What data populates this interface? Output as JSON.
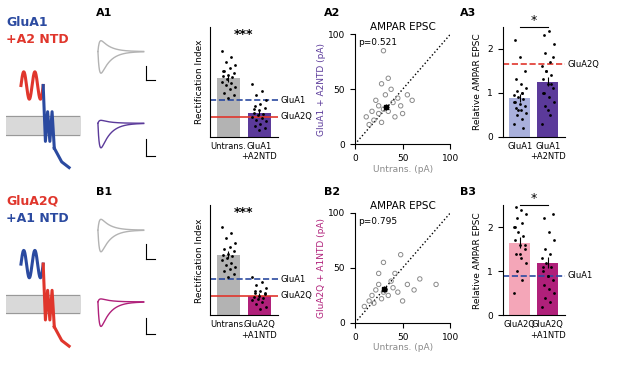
{
  "rows": [
    {
      "title": [
        "GluA1",
        "+A2 NTD"
      ],
      "title_colors": [
        "#2b4aa0",
        "#e0362c"
      ]
    },
    {
      "title": [
        "GluA2Q",
        "+A1 NTD"
      ],
      "title_colors": [
        "#e0362c",
        "#2b4aa0"
      ]
    }
  ],
  "chart_data": [
    {
      "panel": "A1",
      "type": "bar",
      "ylabel": "Rectification Index",
      "categories": [
        "Untrans.",
        "GluA1\n+A2NTD"
      ],
      "values": [
        0.53,
        0.22
      ],
      "errors": [
        0.03,
        0.025
      ],
      "colors": [
        "#b3b3b3",
        "#5b3a9a"
      ],
      "points": [
        [
          0.78,
          0.72,
          0.68,
          0.65,
          0.62,
          0.6,
          0.58,
          0.56,
          0.55,
          0.54,
          0.52,
          0.5,
          0.49,
          0.47,
          0.45,
          0.43,
          0.4,
          0.38,
          0.35,
          0.6
        ],
        [
          0.48,
          0.42,
          0.38,
          0.33,
          0.3,
          0.28,
          0.26,
          0.24,
          0.22,
          0.21,
          0.2,
          0.18,
          0.17,
          0.15,
          0.14,
          0.12,
          0.1,
          0.08,
          0.06,
          0.25
        ]
      ],
      "ylim": [
        0,
        1
      ],
      "tick_labels": "x",
      "reference_lines": [
        {
          "name": "GluA1",
          "value": 0.33,
          "color": "#2b4aa0",
          "line_style": "dashed"
        },
        {
          "name": "GluA2Q",
          "value": 0.18,
          "color": "#e0362c",
          "line_style": "solid"
        }
      ],
      "annotation": "***"
    },
    {
      "panel": "A2",
      "type": "scatter",
      "title": "AMPAR EPSC",
      "annotation": "p=0.521",
      "xlabel": "Untrans. (pA)",
      "ylabel": "GluA1 + A2NTD (pA)",
      "color": "#5b3a9a",
      "x": [
        12,
        15,
        18,
        20,
        22,
        25,
        25,
        28,
        30,
        30,
        32,
        35,
        38,
        40,
        42,
        45,
        48,
        50,
        55,
        60,
        28,
        35
      ],
      "y": [
        25,
        18,
        30,
        22,
        40,
        35,
        28,
        55,
        32,
        85,
        45,
        30,
        50,
        38,
        25,
        42,
        35,
        28,
        45,
        40,
        20,
        60
      ],
      "mean": [
        33,
        34
      ],
      "mean_error": [
        3,
        3
      ],
      "xlim": [
        0,
        100
      ],
      "ylim": [
        0,
        100
      ],
      "xticks": [
        0,
        50,
        100
      ],
      "yticks": [
        0,
        50,
        100
      ]
    },
    {
      "panel": "A3",
      "type": "bar",
      "ylabel": "Relative AMPAR EPSC",
      "categories": [
        "GluA1",
        "GluA1\n+A2NTD"
      ],
      "values": [
        0.88,
        1.25
      ],
      "errors": [
        0.08,
        0.1
      ],
      "colors": [
        "#a9b0dc",
        "#5b3a9a"
      ],
      "points": [
        [
          0.3,
          0.4,
          0.5,
          0.55,
          0.6,
          0.65,
          0.7,
          0.75,
          0.8,
          0.85,
          0.9,
          0.95,
          1.0,
          1.05,
          1.1,
          1.2,
          1.3,
          1.5,
          1.8,
          2.2,
          0.2,
          0.6,
          0.8,
          1.0
        ],
        [
          0.3,
          0.5,
          0.7,
          0.8,
          0.9,
          1.0,
          1.1,
          1.2,
          1.3,
          1.4,
          1.5,
          1.6,
          1.7,
          1.9,
          2.1,
          2.4,
          2.3,
          1.8,
          0.6,
          1.0,
          1.2,
          1.5
        ]
      ],
      "ylim": [
        0,
        2.5
      ],
      "yticks": [
        0,
        1,
        2
      ],
      "reference_lines": [
        {
          "name": "GluA2Q",
          "value": 1.65,
          "color": "#e0362c",
          "line_style": "dashed"
        }
      ],
      "annotation": "*"
    },
    {
      "panel": "B1",
      "type": "bar",
      "ylabel": "Rectification Index",
      "categories": [
        "Untrans.",
        "GluA2Q\n+A1NTD"
      ],
      "values": [
        0.55,
        0.18
      ],
      "errors": [
        0.03,
        0.02
      ],
      "colors": [
        "#b3b3b3",
        "#b0207a"
      ],
      "points": [
        [
          0.8,
          0.75,
          0.7,
          0.66,
          0.62,
          0.6,
          0.58,
          0.56,
          0.55,
          0.54,
          0.52,
          0.5,
          0.48,
          0.46,
          0.44,
          0.42,
          0.4,
          0.38,
          0.35
        ],
        [
          0.35,
          0.3,
          0.28,
          0.25,
          0.22,
          0.2,
          0.19,
          0.18,
          0.17,
          0.16,
          0.15,
          0.14,
          0.12,
          0.1,
          0.08,
          0.06,
          0.22,
          0.2
        ]
      ],
      "ylim": [
        0,
        1
      ],
      "tick_labels": "x",
      "reference_lines": [
        {
          "name": "GluA1",
          "value": 0.33,
          "color": "#2b4aa0",
          "line_style": "dashed"
        },
        {
          "name": "GluA2Q",
          "value": 0.18,
          "color": "#e0362c",
          "line_style": "solid"
        }
      ],
      "annotation": "***"
    },
    {
      "panel": "B2",
      "type": "scatter",
      "title": "AMPAR EPSC",
      "annotation": "p=0.795",
      "xlabel": "Untrans. (pA)",
      "ylabel": "GluA2Q + A1NTD (pA)",
      "color": "#b0207a",
      "x": [
        10,
        15,
        18,
        20,
        22,
        25,
        28,
        30,
        30,
        32,
        35,
        38,
        40,
        42,
        45,
        48,
        50,
        55,
        62,
        68,
        85,
        25
      ],
      "y": [
        15,
        20,
        25,
        18,
        30,
        35,
        22,
        28,
        55,
        30,
        25,
        38,
        32,
        45,
        28,
        62,
        20,
        35,
        30,
        40,
        35,
        45
      ],
      "mean": [
        31,
        31
      ],
      "mean_error": [
        3,
        3
      ],
      "xlim": [
        0,
        100
      ],
      "ylim": [
        0,
        100
      ],
      "xticks": [
        0,
        50,
        100
      ],
      "yticks": [
        0,
        50,
        100
      ]
    },
    {
      "panel": "B3",
      "type": "bar",
      "ylabel": "Relative AMPAR EPSC",
      "categories": [
        "GluA2Q",
        "GluA2Q\n+A1NTD"
      ],
      "values": [
        1.65,
        1.2
      ],
      "errors": [
        0.12,
        0.12
      ],
      "colors": [
        "#f4a6b8",
        "#b0207a"
      ],
      "points": [
        [
          0.5,
          0.8,
          1.0,
          1.2,
          1.3,
          1.4,
          1.5,
          1.6,
          1.7,
          1.8,
          1.9,
          2.0,
          2.1,
          2.2,
          2.3,
          2.4,
          2.45,
          1.6,
          1.4,
          2.0
        ],
        [
          0.2,
          0.3,
          0.4,
          0.5,
          0.6,
          0.7,
          0.8,
          0.9,
          1.0,
          1.1,
          1.2,
          1.3,
          1.4,
          1.5,
          1.7,
          1.9,
          2.2,
          2.3,
          0.9,
          1.1
        ]
      ],
      "ylim": [
        0,
        2.5
      ],
      "yticks": [
        0,
        1,
        2
      ],
      "reference_lines": [
        {
          "name": "GluA1",
          "value": 0.9,
          "color": "#2b4aa0",
          "line_style": "dashed"
        }
      ],
      "annotation": "*"
    }
  ]
}
